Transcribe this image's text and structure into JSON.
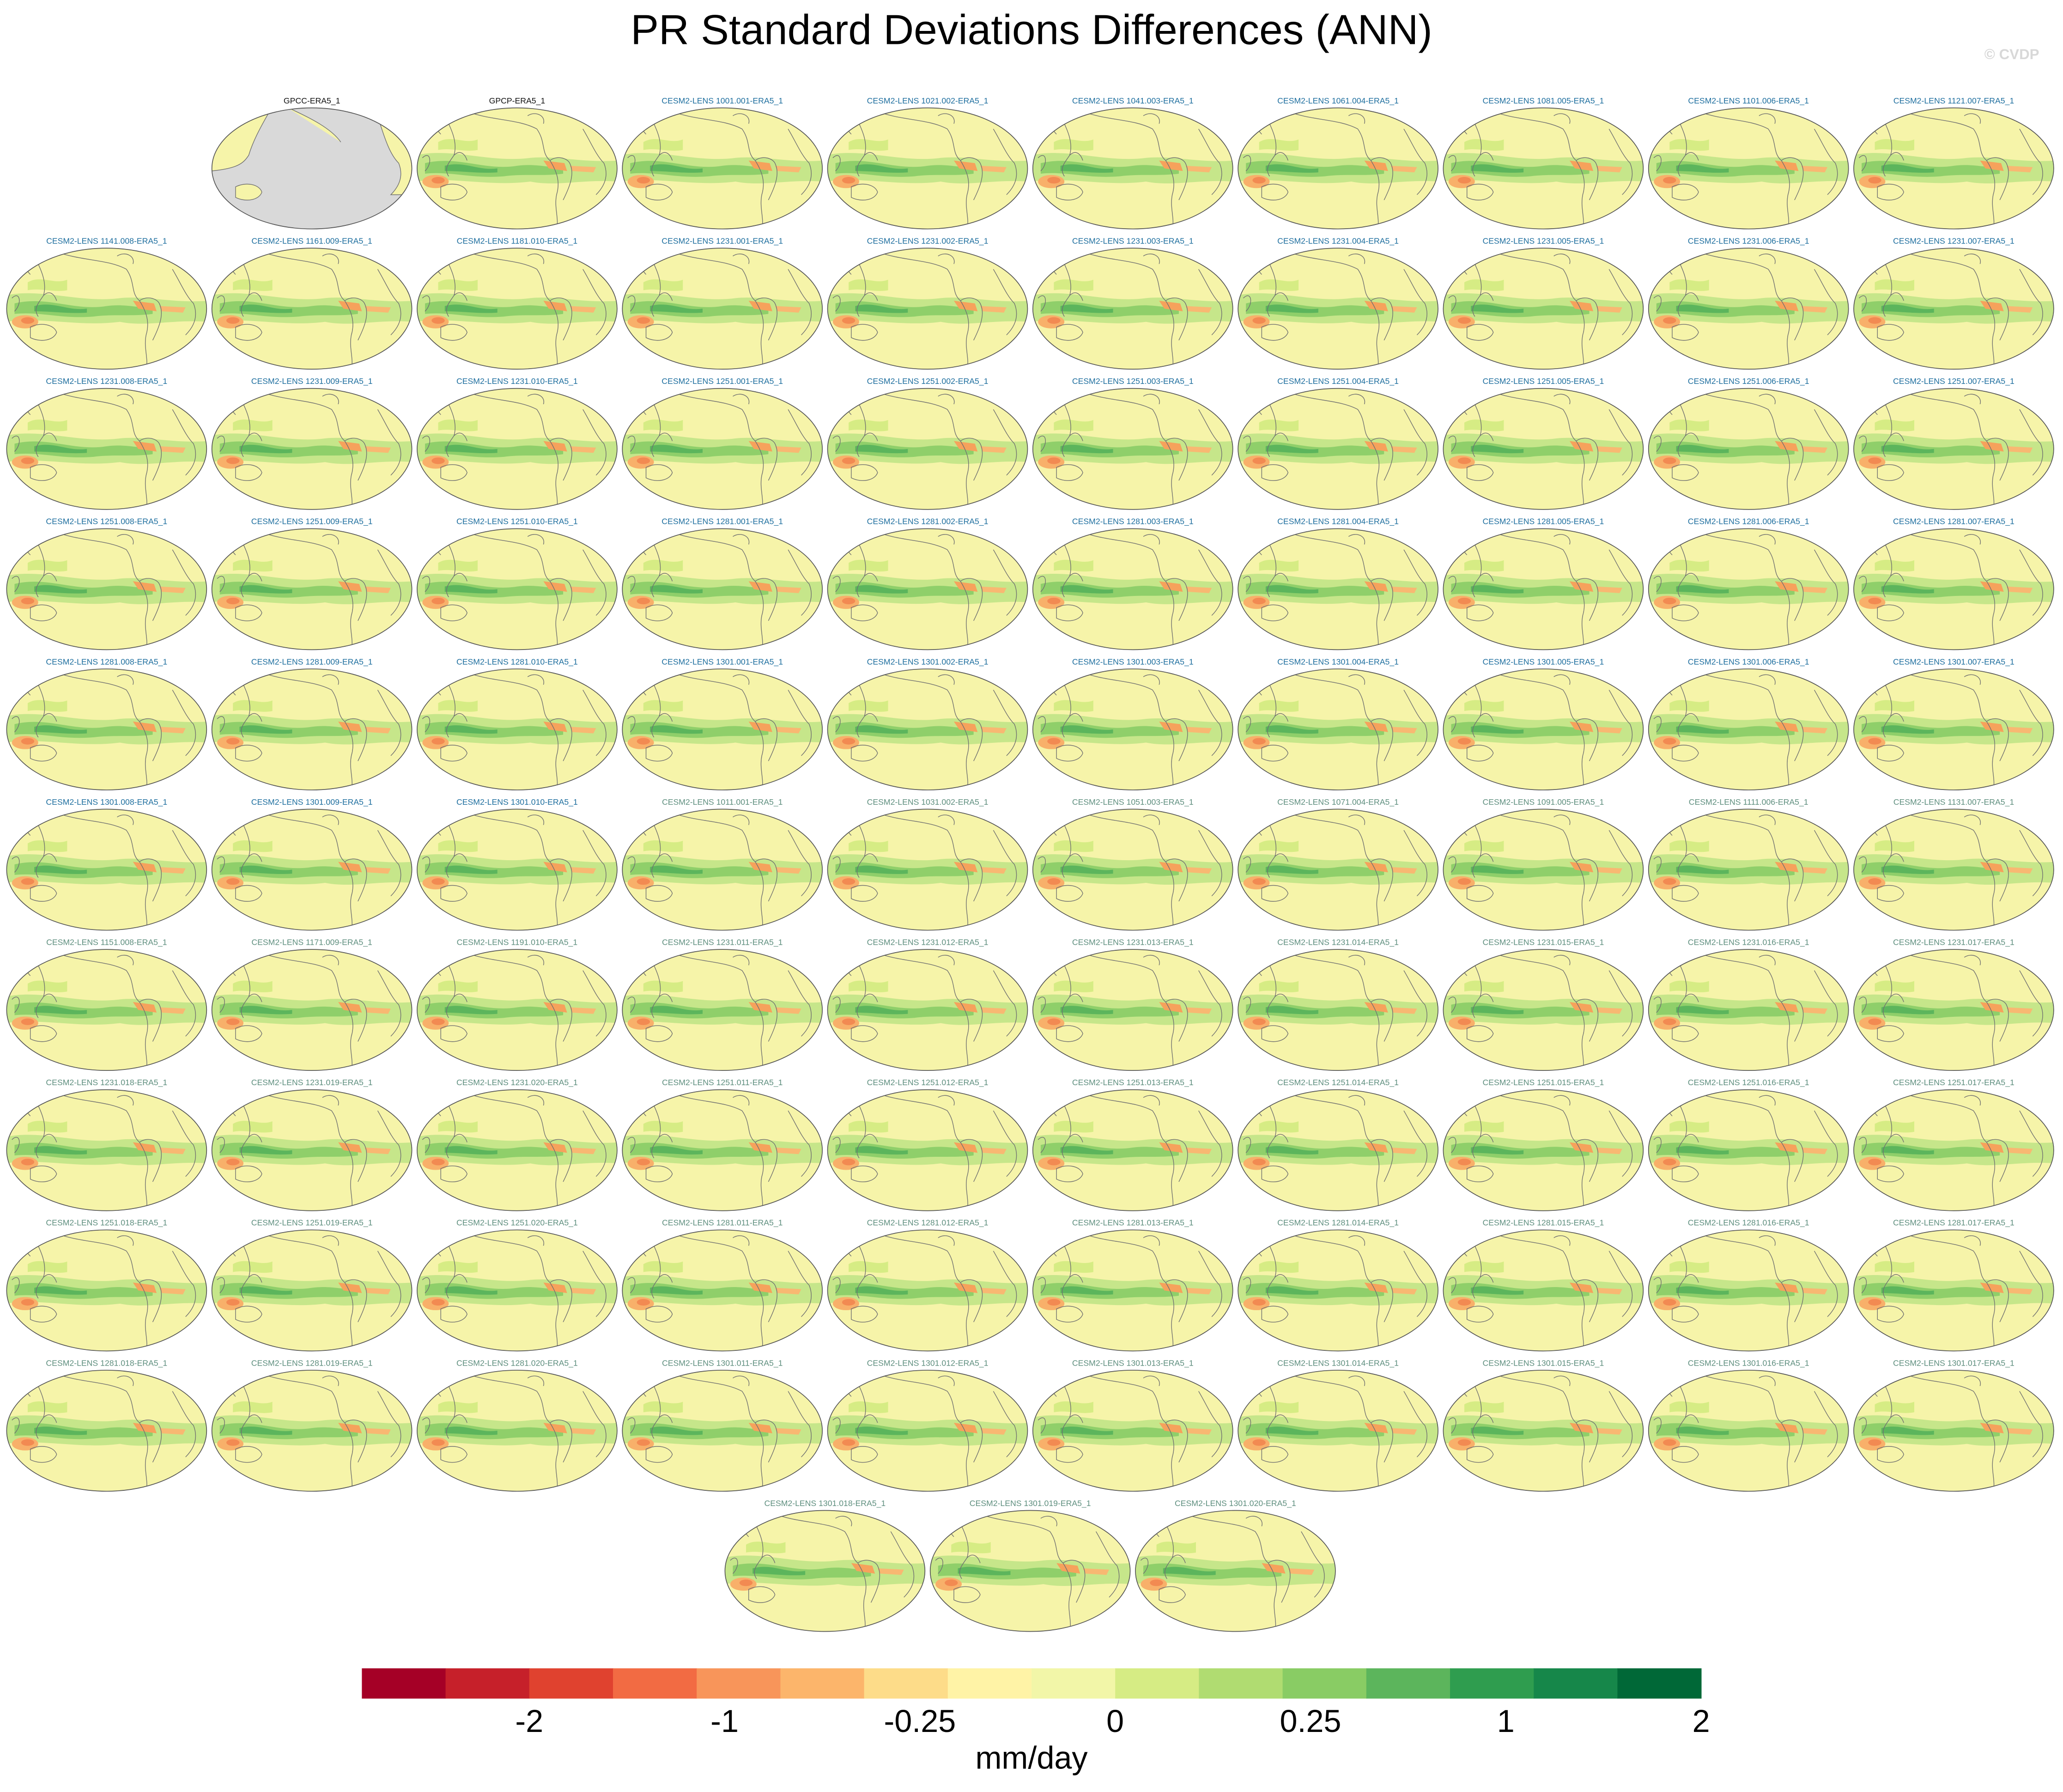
{
  "chart_data": {
    "type": "map_panels",
    "title": "PR Standard Deviations Differences (ANN)",
    "watermark": "© CVDP",
    "panels": [
      {
        "label": "GPCC-ERA5_1",
        "color": "#111111"
      },
      {
        "label": "GPCP-ERA5_1",
        "color": "#111111"
      },
      {
        "label": "CESM2-LENS 1001.001-ERA5_1",
        "color": "#1f6f9f"
      },
      {
        "label": "CESM2-LENS 1021.002-ERA5_1",
        "color": "#1f6f9f"
      },
      {
        "label": "CESM2-LENS 1041.003-ERA5_1",
        "color": "#1f6f9f"
      },
      {
        "label": "CESM2-LENS 1061.004-ERA5_1",
        "color": "#1f6f9f"
      },
      {
        "label": "CESM2-LENS 1081.005-ERA5_1",
        "color": "#1f6f9f"
      },
      {
        "label": "CESM2-LENS 1101.006-ERA5_1",
        "color": "#1f6f9f"
      },
      {
        "label": "CESM2-LENS 1121.007-ERA5_1",
        "color": "#1f6f9f"
      },
      {
        "label": "CESM2-LENS 1141.008-ERA5_1",
        "color": "#1f6f9f"
      },
      {
        "label": "CESM2-LENS 1161.009-ERA5_1",
        "color": "#1f6f9f"
      },
      {
        "label": "CESM2-LENS 1181.010-ERA5_1",
        "color": "#1f6f9f"
      },
      {
        "label": "CESM2-LENS 1231.001-ERA5_1",
        "color": "#1f6f9f"
      },
      {
        "label": "CESM2-LENS 1231.002-ERA5_1",
        "color": "#1f6f9f"
      },
      {
        "label": "CESM2-LENS 1231.003-ERA5_1",
        "color": "#1f6f9f"
      },
      {
        "label": "CESM2-LENS 1231.004-ERA5_1",
        "color": "#1f6f9f"
      },
      {
        "label": "CESM2-LENS 1231.005-ERA5_1",
        "color": "#1f6f9f"
      },
      {
        "label": "CESM2-LENS 1231.006-ERA5_1",
        "color": "#1f6f9f"
      },
      {
        "label": "CESM2-LENS 1231.007-ERA5_1",
        "color": "#1f6f9f"
      },
      {
        "label": "CESM2-LENS 1231.008-ERA5_1",
        "color": "#1f6f9f"
      },
      {
        "label": "CESM2-LENS 1231.009-ERA5_1",
        "color": "#1f6f9f"
      },
      {
        "label": "CESM2-LENS 1231.010-ERA5_1",
        "color": "#1f6f9f"
      },
      {
        "label": "CESM2-LENS 1251.001-ERA5_1",
        "color": "#1f6f9f"
      },
      {
        "label": "CESM2-LENS 1251.002-ERA5_1",
        "color": "#1f6f9f"
      },
      {
        "label": "CESM2-LENS 1251.003-ERA5_1",
        "color": "#1f6f9f"
      },
      {
        "label": "CESM2-LENS 1251.004-ERA5_1",
        "color": "#1f6f9f"
      },
      {
        "label": "CESM2-LENS 1251.005-ERA5_1",
        "color": "#1f6f9f"
      },
      {
        "label": "CESM2-LENS 1251.006-ERA5_1",
        "color": "#1f6f9f"
      },
      {
        "label": "CESM2-LENS 1251.007-ERA5_1",
        "color": "#1f6f9f"
      },
      {
        "label": "CESM2-LENS 1251.008-ERA5_1",
        "color": "#1f6f9f"
      },
      {
        "label": "CESM2-LENS 1251.009-ERA5_1",
        "color": "#1f6f9f"
      },
      {
        "label": "CESM2-LENS 1251.010-ERA5_1",
        "color": "#1f6f9f"
      },
      {
        "label": "CESM2-LENS 1281.001-ERA5_1",
        "color": "#1f6f9f"
      },
      {
        "label": "CESM2-LENS 1281.002-ERA5_1",
        "color": "#1f6f9f"
      },
      {
        "label": "CESM2-LENS 1281.003-ERA5_1",
        "color": "#1f6f9f"
      },
      {
        "label": "CESM2-LENS 1281.004-ERA5_1",
        "color": "#1f6f9f"
      },
      {
        "label": "CESM2-LENS 1281.005-ERA5_1",
        "color": "#1f6f9f"
      },
      {
        "label": "CESM2-LENS 1281.006-ERA5_1",
        "color": "#1f6f9f"
      },
      {
        "label": "CESM2-LENS 1281.007-ERA5_1",
        "color": "#1f6f9f"
      },
      {
        "label": "CESM2-LENS 1281.008-ERA5_1",
        "color": "#1f6f9f"
      },
      {
        "label": "CESM2-LENS 1281.009-ERA5_1",
        "color": "#1f6f9f"
      },
      {
        "label": "CESM2-LENS 1281.010-ERA5_1",
        "color": "#1f6f9f"
      },
      {
        "label": "CESM2-LENS 1301.001-ERA5_1",
        "color": "#1f6f9f"
      },
      {
        "label": "CESM2-LENS 1301.002-ERA5_1",
        "color": "#1f6f9f"
      },
      {
        "label": "CESM2-LENS 1301.003-ERA5_1",
        "color": "#1f6f9f"
      },
      {
        "label": "CESM2-LENS 1301.004-ERA5_1",
        "color": "#1f6f9f"
      },
      {
        "label": "CESM2-LENS 1301.005-ERA5_1",
        "color": "#1f6f9f"
      },
      {
        "label": "CESM2-LENS 1301.006-ERA5_1",
        "color": "#1f6f9f"
      },
      {
        "label": "CESM2-LENS 1301.007-ERA5_1",
        "color": "#1f6f9f"
      },
      {
        "label": "CESM2-LENS 1301.008-ERA5_1",
        "color": "#1f6f9f"
      },
      {
        "label": "CESM2-LENS 1301.009-ERA5_1",
        "color": "#1f6f9f"
      },
      {
        "label": "CESM2-LENS 1301.010-ERA5_1",
        "color": "#1f6f9f"
      },
      {
        "label": "CESM2-LENS 1011.001-ERA5_1",
        "color": "#5f8f7f"
      },
      {
        "label": "CESM2-LENS 1031.002-ERA5_1",
        "color": "#5f8f7f"
      },
      {
        "label": "CESM2-LENS 1051.003-ERA5_1",
        "color": "#5f8f7f"
      },
      {
        "label": "CESM2-LENS 1071.004-ERA5_1",
        "color": "#5f8f7f"
      },
      {
        "label": "CESM2-LENS 1091.005-ERA5_1",
        "color": "#5f8f7f"
      },
      {
        "label": "CESM2-LENS 1111.006-ERA5_1",
        "color": "#5f8f7f"
      },
      {
        "label": "CESM2-LENS 1131.007-ERA5_1",
        "color": "#5f8f7f"
      },
      {
        "label": "CESM2-LENS 1151.008-ERA5_1",
        "color": "#5f8f7f"
      },
      {
        "label": "CESM2-LENS 1171.009-ERA5_1",
        "color": "#5f8f7f"
      },
      {
        "label": "CESM2-LENS 1191.010-ERA5_1",
        "color": "#5f8f7f"
      },
      {
        "label": "CESM2-LENS 1231.011-ERA5_1",
        "color": "#5f8f7f"
      },
      {
        "label": "CESM2-LENS 1231.012-ERA5_1",
        "color": "#5f8f7f"
      },
      {
        "label": "CESM2-LENS 1231.013-ERA5_1",
        "color": "#5f8f7f"
      },
      {
        "label": "CESM2-LENS 1231.014-ERA5_1",
        "color": "#5f8f7f"
      },
      {
        "label": "CESM2-LENS 1231.015-ERA5_1",
        "color": "#5f8f7f"
      },
      {
        "label": "CESM2-LENS 1231.016-ERA5_1",
        "color": "#5f8f7f"
      },
      {
        "label": "CESM2-LENS 1231.017-ERA5_1",
        "color": "#5f8f7f"
      },
      {
        "label": "CESM2-LENS 1231.018-ERA5_1",
        "color": "#5f8f7f"
      },
      {
        "label": "CESM2-LENS 1231.019-ERA5_1",
        "color": "#5f8f7f"
      },
      {
        "label": "CESM2-LENS 1231.020-ERA5_1",
        "color": "#5f8f7f"
      },
      {
        "label": "CESM2-LENS 1251.011-ERA5_1",
        "color": "#5f8f7f"
      },
      {
        "label": "CESM2-LENS 1251.012-ERA5_1",
        "color": "#5f8f7f"
      },
      {
        "label": "CESM2-LENS 1251.013-ERA5_1",
        "color": "#5f8f7f"
      },
      {
        "label": "CESM2-LENS 1251.014-ERA5_1",
        "color": "#5f8f7f"
      },
      {
        "label": "CESM2-LENS 1251.015-ERA5_1",
        "color": "#5f8f7f"
      },
      {
        "label": "CESM2-LENS 1251.016-ERA5_1",
        "color": "#5f8f7f"
      },
      {
        "label": "CESM2-LENS 1251.017-ERA5_1",
        "color": "#5f8f7f"
      },
      {
        "label": "CESM2-LENS 1251.018-ERA5_1",
        "color": "#5f8f7f"
      },
      {
        "label": "CESM2-LENS 1251.019-ERA5_1",
        "color": "#5f8f7f"
      },
      {
        "label": "CESM2-LENS 1251.020-ERA5_1",
        "color": "#5f8f7f"
      },
      {
        "label": "CESM2-LENS 1281.011-ERA5_1",
        "color": "#5f8f7f"
      },
      {
        "label": "CESM2-LENS 1281.012-ERA5_1",
        "color": "#5f8f7f"
      },
      {
        "label": "CESM2-LENS 1281.013-ERA5_1",
        "color": "#5f8f7f"
      },
      {
        "label": "CESM2-LENS 1281.014-ERA5_1",
        "color": "#5f8f7f"
      },
      {
        "label": "CESM2-LENS 1281.015-ERA5_1",
        "color": "#5f8f7f"
      },
      {
        "label": "CESM2-LENS 1281.016-ERA5_1",
        "color": "#5f8f7f"
      },
      {
        "label": "CESM2-LENS 1281.017-ERA5_1",
        "color": "#5f8f7f"
      },
      {
        "label": "CESM2-LENS 1281.018-ERA5_1",
        "color": "#5f8f7f"
      },
      {
        "label": "CESM2-LENS 1281.019-ERA5_1",
        "color": "#5f8f7f"
      },
      {
        "label": "CESM2-LENS 1281.020-ERA5_1",
        "color": "#5f8f7f"
      },
      {
        "label": "CESM2-LENS 1301.011-ERA5_1",
        "color": "#5f8f7f"
      },
      {
        "label": "CESM2-LENS 1301.012-ERA5_1",
        "color": "#5f8f7f"
      },
      {
        "label": "CESM2-LENS 1301.013-ERA5_1",
        "color": "#5f8f7f"
      },
      {
        "label": "CESM2-LENS 1301.014-ERA5_1",
        "color": "#5f8f7f"
      },
      {
        "label": "CESM2-LENS 1301.015-ERA5_1",
        "color": "#5f8f7f"
      },
      {
        "label": "CESM2-LENS 1301.016-ERA5_1",
        "color": "#5f8f7f"
      },
      {
        "label": "CESM2-LENS 1301.017-ERA5_1",
        "color": "#5f8f7f"
      },
      {
        "label": "CESM2-LENS 1301.018-ERA5_1",
        "color": "#5f8f7f"
      },
      {
        "label": "CESM2-LENS 1301.019-ERA5_1",
        "color": "#5f8f7f"
      },
      {
        "label": "CESM2-LENS 1301.020-ERA5_1",
        "color": "#5f8f7f"
      }
    ],
    "colorbar": {
      "colors": [
        "#a50026",
        "#c6202a",
        "#e0422f",
        "#f26b43",
        "#f8955a",
        "#fcb56b",
        "#fddc89",
        "#fff3a6",
        "#f2f6a8",
        "#d6ec84",
        "#b0dc71",
        "#89cc64",
        "#5cb55c",
        "#2f9d4f",
        "#16874a",
        "#006837"
      ],
      "ticks": [
        -2,
        -1,
        -0.25,
        0,
        0.25,
        1,
        2
      ],
      "label": "mm/day"
    }
  }
}
